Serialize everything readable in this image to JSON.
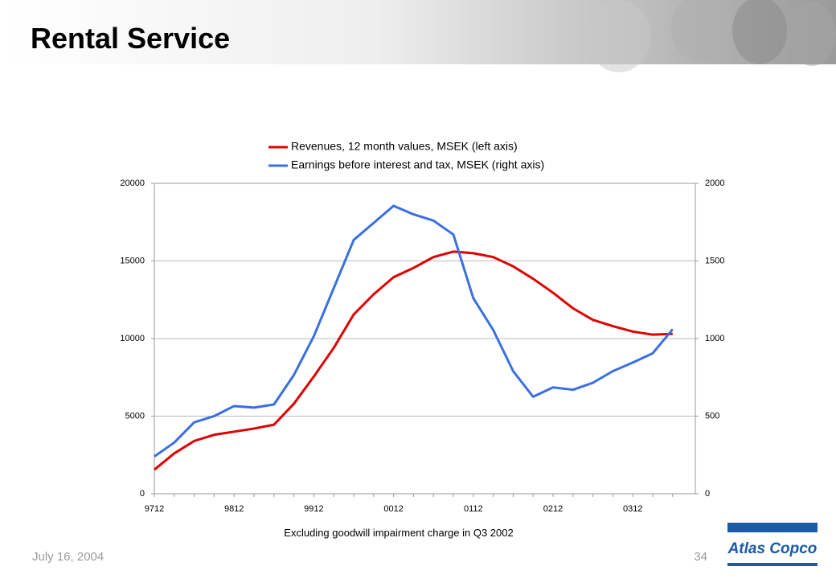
{
  "header": {
    "title": "Rental Service"
  },
  "footer": {
    "date": "July 16, 2004",
    "page": "34",
    "logo": "Atlas Copco"
  },
  "note": "Excluding goodwill impairment charge in Q3 2002",
  "chart_data": {
    "type": "line",
    "categories": [
      "9712",
      null,
      null,
      null,
      "9812",
      null,
      null,
      null,
      "9912",
      null,
      null,
      null,
      "0012",
      null,
      null,
      null,
      "0112",
      null,
      null,
      null,
      "0212",
      null,
      null,
      null,
      "0312",
      null,
      null
    ],
    "series": [
      {
        "name": "Revenues, 12 month values, MSEK (left axis)",
        "color": "#e00000",
        "axis": "y",
        "values": [
          1550,
          2600,
          3400,
          3800,
          4000,
          4200,
          4450,
          5800,
          7550,
          9400,
          11550,
          12850,
          13950,
          14550,
          15250,
          15600,
          15500,
          15250,
          14650,
          13850,
          12950,
          11950,
          11200,
          10800,
          10450,
          10250,
          10300
        ]
      },
      {
        "name": "Earnings before interest and tax, MSEK (right axis)",
        "color": "#3a6fe0",
        "axis": "y2",
        "values": [
          240,
          330,
          460,
          500,
          565,
          555,
          575,
          765,
          1015,
          1325,
          1635,
          1745,
          1855,
          1800,
          1760,
          1670,
          1260,
          1055,
          790,
          625,
          685,
          670,
          715,
          790,
          845,
          905,
          1060
        ]
      }
    ],
    "ylim": [
      0,
      20000
    ],
    "yticks": [
      0,
      5000,
      10000,
      15000,
      20000
    ],
    "y2lim": [
      0,
      2000
    ],
    "y2ticks": [
      0,
      500,
      1000,
      1500,
      2000
    ],
    "grid": true,
    "legend": "top"
  }
}
